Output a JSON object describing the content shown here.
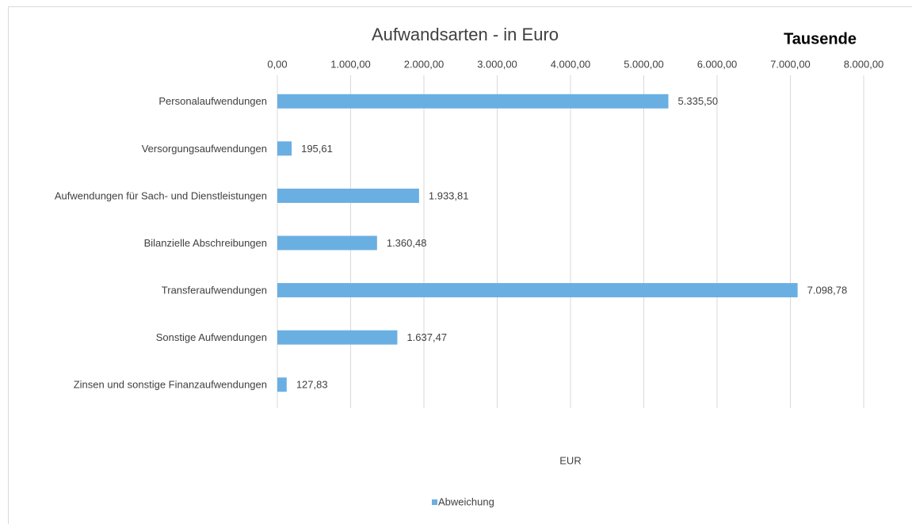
{
  "chart_data": {
    "type": "bar",
    "orientation": "horizontal",
    "title": "Aufwandsarten - in Euro",
    "unit_label": "Tausende",
    "axis_label": "EUR",
    "categories": [
      "Personalaufwendungen",
      "Versorgungsaufwendungen",
      "Aufwendungen für Sach- und Dienstleistungen",
      "Bilanzielle Abschreibungen",
      "Transferaufwendungen",
      "Sonstige Aufwendungen",
      "Zinsen und sonstige Finanzaufwendungen"
    ],
    "series": [
      {
        "name": "Abweichung",
        "color": "#6aafe2",
        "values": [
          5335.5,
          195.61,
          1933.81,
          1360.48,
          7098.78,
          1637.47,
          127.83
        ],
        "value_labels": [
          "5.335,50",
          "195,61",
          "1.933,81",
          "1.360,48",
          "7.098,78",
          "1.637,47",
          "127,83"
        ]
      }
    ],
    "xlim": [
      0,
      8000
    ],
    "xticks": [
      {
        "value": 0,
        "label": "0,00"
      },
      {
        "value": 1000,
        "label": "1.000,00"
      },
      {
        "value": 2000,
        "label": "2.000,00"
      },
      {
        "value": 3000,
        "label": "3.000,00"
      },
      {
        "value": 4000,
        "label": "4.000,00"
      },
      {
        "value": 5000,
        "label": "5.000,00"
      },
      {
        "value": 6000,
        "label": "6.000,00"
      },
      {
        "value": 7000,
        "label": "7.000,00"
      },
      {
        "value": 8000,
        "label": "8.000,00"
      }
    ],
    "grid": true,
    "legend": "bottom"
  }
}
